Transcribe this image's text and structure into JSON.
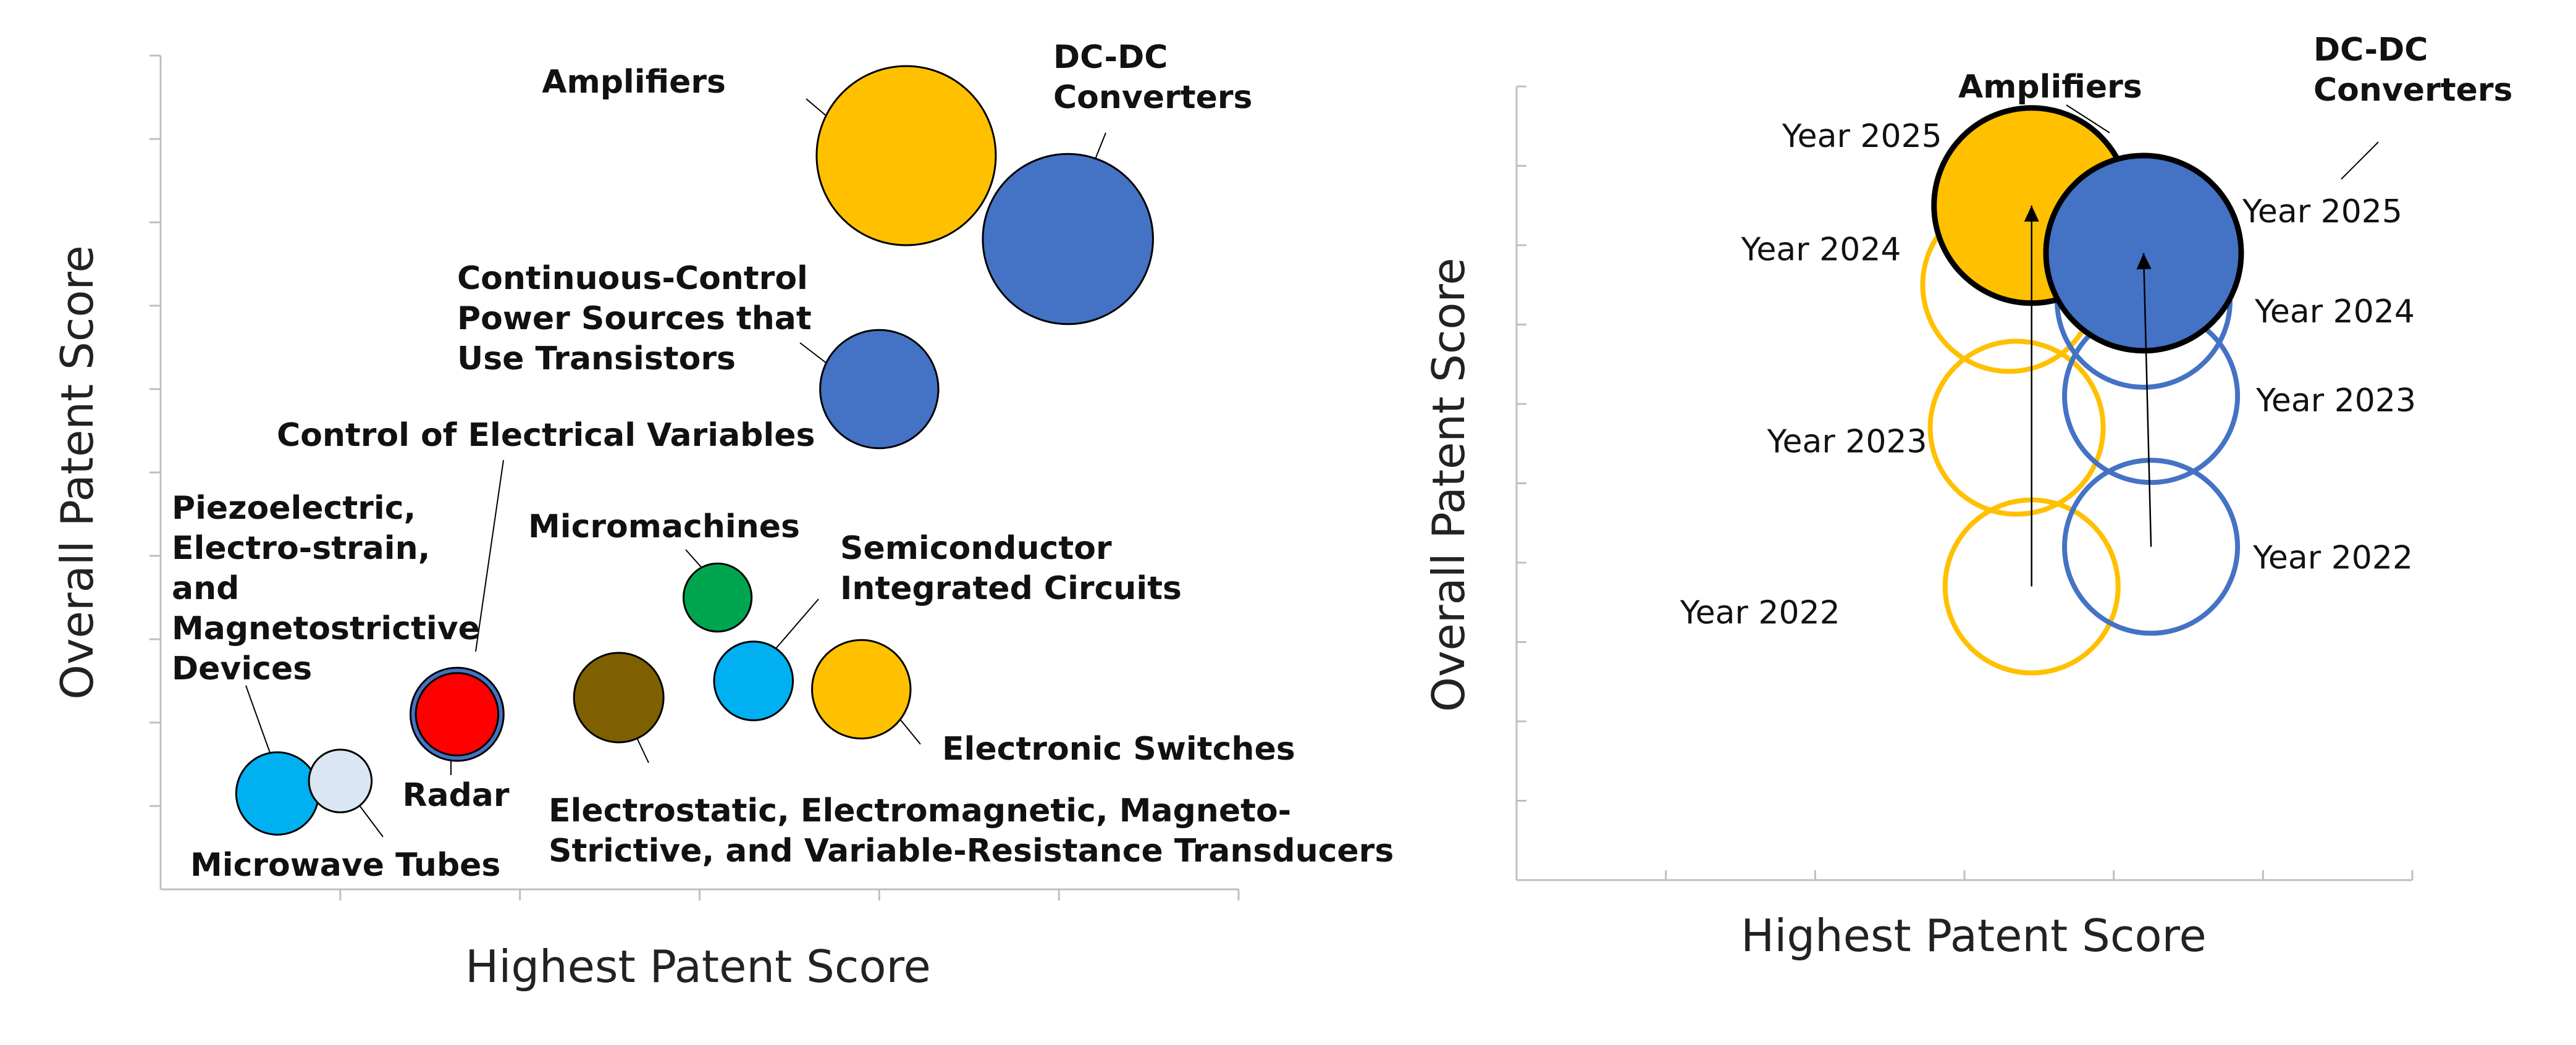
{
  "colors": {
    "yellow": "#FFC000",
    "blue": "#4472C4",
    "green": "#00A550",
    "brown": "#7F6000",
    "light_blue": "#00B0F0",
    "pale_blue": "#DAE6F3",
    "red": "#FF0000",
    "axis": "#BFBFBF",
    "outline": "#000000"
  },
  "chart_data": [
    {
      "type": "scatter",
      "xlabel": "Highest Patent Score",
      "ylabel": "Overall Patent Score",
      "series": [
        {
          "name": "Amplifiers",
          "x": 8.3,
          "y": 8.8,
          "size": 1.0,
          "color": "yellow",
          "label_lines": [
            "Amplifiers"
          ]
        },
        {
          "name": "DC-DC Converters",
          "x": 10.1,
          "y": 7.8,
          "size": 0.95,
          "color": "blue",
          "label_lines": [
            "DC-DC",
            "Converters"
          ]
        },
        {
          "name": "Continuous-Control Power Sources that Use Transistors",
          "x": 8.0,
          "y": 6.0,
          "size": 0.66,
          "color": "blue",
          "label_lines": [
            "Continuous-Control",
            "Power Sources that",
            "Use Transistors"
          ]
        },
        {
          "name": "Control of Electrical Variables",
          "x": 3.3,
          "y": 2.1,
          "size": 0.52,
          "color": "blue",
          "label_lines": [
            "Control of Electrical Variables"
          ]
        },
        {
          "name": "Radar",
          "x": 3.3,
          "y": 2.1,
          "size": 0.46,
          "color": "red",
          "label_lines": [
            "Radar"
          ]
        },
        {
          "name": "Micromachines",
          "x": 6.2,
          "y": 3.5,
          "size": 0.38,
          "color": "green",
          "label_lines": [
            "Micromachines"
          ]
        },
        {
          "name": "Semiconductor Integrated Circuits",
          "x": 6.6,
          "y": 2.5,
          "size": 0.44,
          "color": "light_blue",
          "label_lines": [
            "Semiconductor",
            "Integrated Circuits"
          ]
        },
        {
          "name": "Electronic Switches",
          "x": 7.8,
          "y": 2.4,
          "size": 0.55,
          "color": "yellow",
          "label_lines": [
            "Electronic Switches"
          ]
        },
        {
          "name": "Electrostatic, Electromagnetic, Magneto-Strictive, and Variable-Resistance Transducers",
          "x": 5.1,
          "y": 2.3,
          "size": 0.5,
          "color": "brown",
          "label_lines": [
            "Electrostatic, Electromagnetic, Magneto-",
            "Strictive, and Variable-Resistance Transducers"
          ]
        },
        {
          "name": "Piezoelectric, Electro-strain, and Magnetostrictive Devices",
          "x": 1.3,
          "y": 1.15,
          "size": 0.46,
          "color": "light_blue",
          "label_lines": [
            "Piezoelectric,",
            "Electro-strain,",
            "and",
            "Magnetostrictive",
            "Devices"
          ]
        },
        {
          "name": "Microwave Tubes",
          "x": 2.0,
          "y": 1.3,
          "size": 0.35,
          "color": "pale_blue",
          "label_lines": [
            "Microwave Tubes"
          ]
        }
      ]
    },
    {
      "type": "scatter",
      "xlabel": "Highest Patent Score",
      "ylabel": "Overall Patent Score",
      "series": [
        {
          "name": "Amplifiers",
          "label_lines": [
            "Amplifiers"
          ],
          "color": "yellow",
          "points": [
            {
              "year": "Year 2022",
              "x": 6.9,
              "y": 3.7
            },
            {
              "year": "Year 2023",
              "x": 6.7,
              "y": 5.7
            },
            {
              "year": "Year 2024",
              "x": 6.6,
              "y": 7.5
            },
            {
              "year": "Year 2025",
              "x": 6.9,
              "y": 8.5
            }
          ]
        },
        {
          "name": "DC-DC Converters",
          "label_lines": [
            "DC-DC",
            "Converters"
          ],
          "color": "blue",
          "points": [
            {
              "year": "Year 2022",
              "x": 8.5,
              "y": 4.2
            },
            {
              "year": "Year 2023",
              "x": 8.5,
              "y": 6.1
            },
            {
              "year": "Year 2024",
              "x": 8.4,
              "y": 7.3
            },
            {
              "year": "Year 2025",
              "x": 8.4,
              "y": 7.9
            }
          ]
        }
      ]
    }
  ]
}
